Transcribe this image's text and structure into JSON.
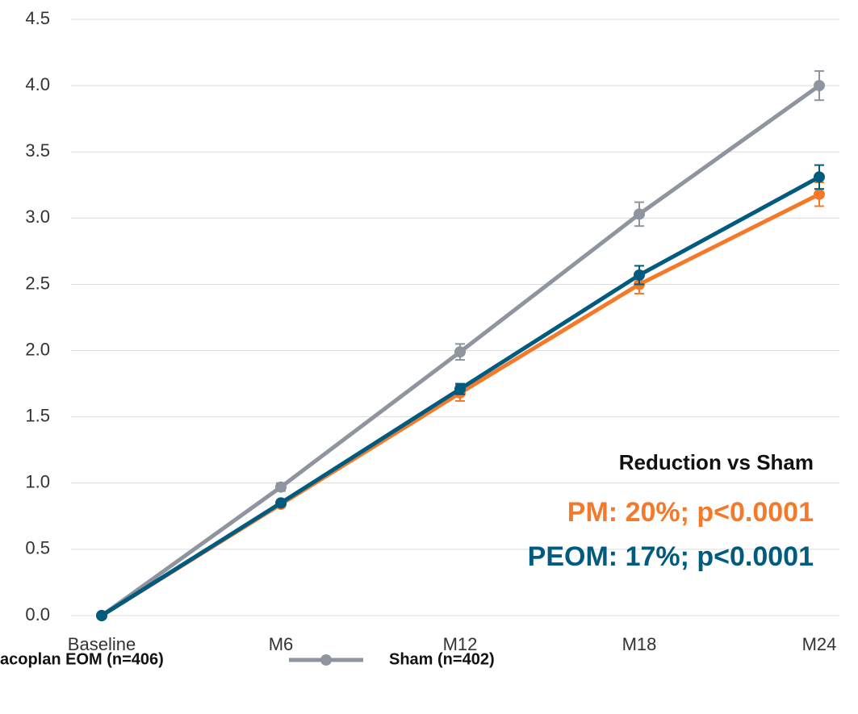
{
  "chart_data": {
    "type": "line",
    "categories": [
      "Baseline",
      "M6",
      "M12",
      "M18",
      "M24"
    ],
    "series": [
      {
        "name": "Sham (n=402)",
        "color": "#8e959e",
        "values": [
          0,
          0.97,
          1.99,
          3.03,
          4.0
        ],
        "errors": [
          0,
          0.03,
          0.06,
          0.09,
          0.11
        ]
      },
      {
        "color": "#f47a2a",
        "values": [
          0,
          0.84,
          1.68,
          2.5,
          3.18
        ],
        "errors": [
          0,
          0.02,
          0.06,
          0.07,
          0.09
        ]
      },
      {
        "name": "acoplan EOM (n=406)",
        "color": "#005b7f",
        "values": [
          0,
          0.85,
          1.71,
          2.57,
          3.31
        ],
        "errors": [
          0,
          0.02,
          0.04,
          0.07,
          0.09
        ]
      }
    ],
    "ylim": [
      0,
      4.5
    ],
    "yticks": [
      {
        "value": 0,
        "label": "0.0"
      },
      0.5,
      {
        "value": 1,
        "label": "1.0"
      },
      1.5,
      {
        "value": 2,
        "label": "2.0"
      },
      2.5,
      {
        "value": 3,
        "label": "3.0"
      },
      3.5,
      {
        "value": 4,
        "label": "4.0"
      },
      4.5
    ],
    "grid": true,
    "annotations": [
      {
        "text": "Reduction vs Sham",
        "color": "#111111"
      },
      {
        "text": "PM: 20%; p<0.0001",
        "color": "#f47a2a"
      },
      {
        "text": "PEOM: 17%; p<0.0001",
        "color": "#005b7f"
      }
    ]
  }
}
